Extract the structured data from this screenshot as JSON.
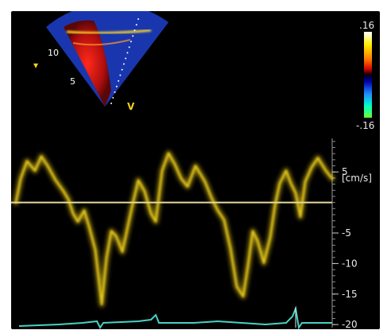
{
  "color_scale": {
    "max_label": ".16",
    "min_label": "-.16",
    "stops": [
      "#ffffff",
      "#ffee00",
      "#ff8800",
      "#cc0000",
      "#220000",
      "#000000",
      "#0000aa",
      "#2288ff",
      "#00ffcc",
      "#66ff33"
    ]
  },
  "sector": {
    "depth_labels": [
      "10",
      "5"
    ],
    "marker_left": "▾",
    "marker_right": "V",
    "colors": {
      "red": "#d81616",
      "blue": "#1c3fd4",
      "dots": "#ffffff"
    }
  },
  "velocity_axis": {
    "unit_label": "[cm/s]",
    "ticks": [
      {
        "label": "5",
        "value": 5
      },
      {
        "label": "-5",
        "value": -5
      },
      {
        "label": "-10",
        "value": -10
      },
      {
        "label": "-15",
        "value": -15
      },
      {
        "label": "-20",
        "value": -20
      }
    ],
    "baseline_value": 0,
    "range": [
      -20.5,
      10.5
    ]
  },
  "trace": {
    "color": "#f2d21d",
    "baseline_color": "#e4db9c",
    "ecg_color": "#48d0c4"
  }
}
